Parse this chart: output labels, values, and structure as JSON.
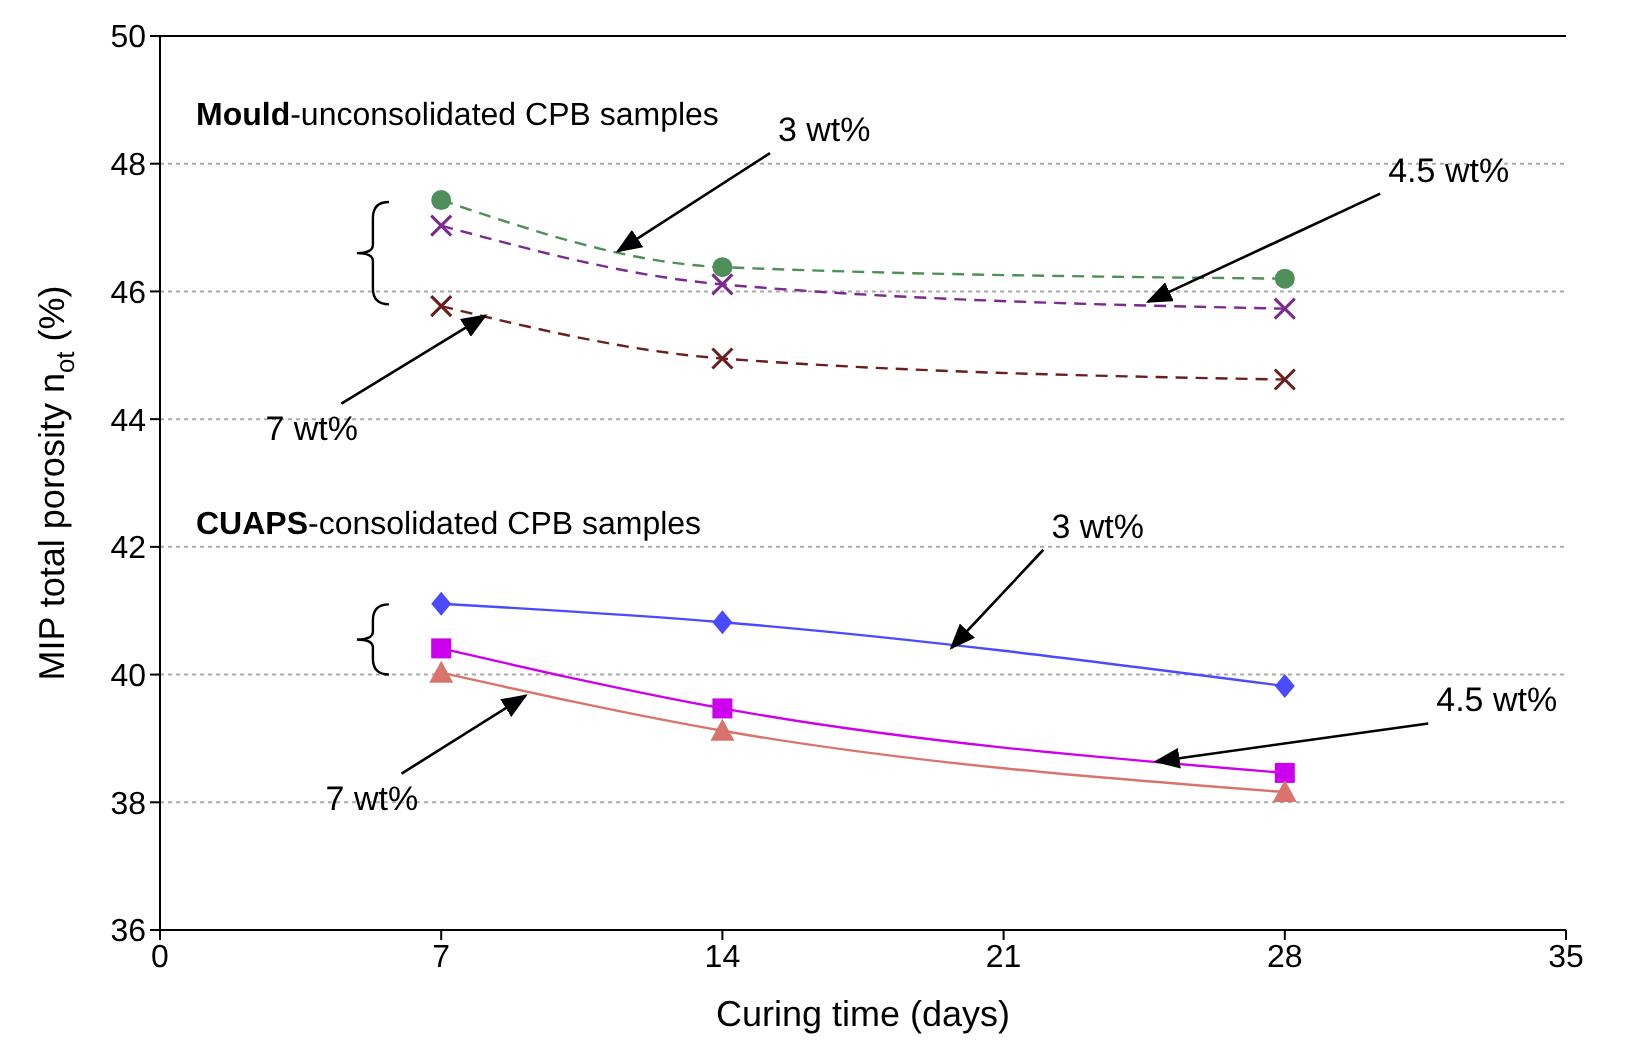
{
  "chart_data": {
    "type": "line",
    "xlabel": "Curing time (days)",
    "ylabel": "MIP total porosity n$_{ot}$ (%)",
    "x": [
      7,
      14,
      28
    ],
    "xlim": [
      0,
      35
    ],
    "xticks": [
      0,
      7,
      14,
      21,
      28,
      35
    ],
    "ylim": [
      36,
      50
    ],
    "yticks": [
      36,
      38,
      40,
      42,
      44,
      46,
      48,
      50
    ],
    "grid": "y",
    "legend": false,
    "series": [
      {
        "color": "#4e8f5a",
        "marker": "circle",
        "line_style": "dashed",
        "values": [
          47.43,
          46.38,
          46.2
        ]
      },
      {
        "color": "#7b2a8f",
        "marker": "cross",
        "line_style": "dashed",
        "values": [
          47.03,
          46.11,
          45.73
        ]
      },
      {
        "color": "#6b1e1e",
        "marker": "cross",
        "line_style": "dashed",
        "values": [
          45.77,
          44.95,
          44.62
        ]
      },
      {
        "color": "#4a4aff",
        "marker": "diamond",
        "line_style": "solid",
        "values": [
          41.11,
          40.82,
          39.82
        ]
      },
      {
        "color": "#cc00ee",
        "marker": "square",
        "line_style": "solid",
        "values": [
          40.41,
          39.47,
          38.46
        ]
      },
      {
        "color": "#d9736b",
        "marker": "triangle",
        "line_style": "solid",
        "values": [
          40.03,
          39.12,
          38.16
        ]
      }
    ],
    "annotations": [
      "Mould-unconsolidated CPB samples",
      "CUAPS-consolidated CPB samples",
      {
        "text": "3 wt%",
        "x": 11.4,
        "y": 46.63
      },
      {
        "text": "4.5 wt%",
        "x": 24.6,
        "y": 45.84
      },
      {
        "text": "7 wt%",
        "x": 8.1,
        "y": 45.62
      },
      {
        "text": "3 wt%",
        "x": 19.7,
        "y": 40.42
      },
      {
        "text": "4.5 wt%",
        "x": 24.8,
        "y": 38.64
      },
      {
        "text": "7 wt%",
        "x": 9.1,
        "y": 39.67
      }
    ]
  }
}
